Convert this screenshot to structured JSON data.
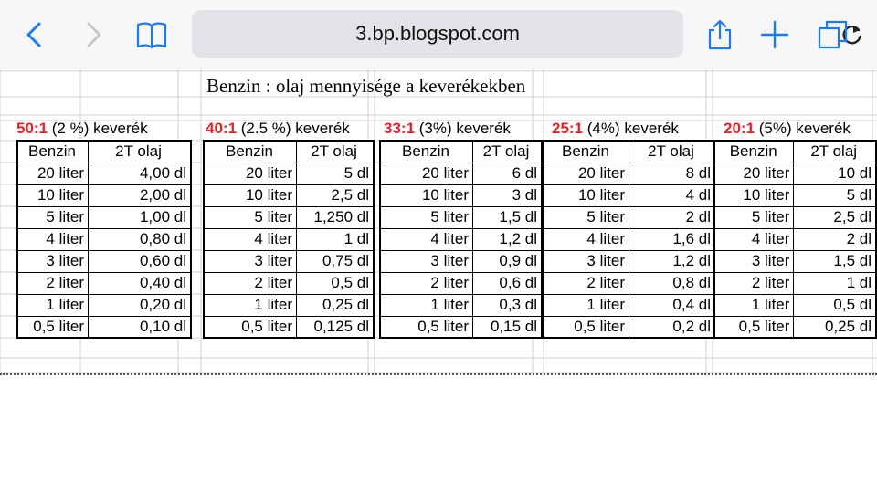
{
  "browser": {
    "url": "3.bp.blogspot.com",
    "icons": [
      "back-icon",
      "forward-icon",
      "bookmarks-icon",
      "reload-icon",
      "share-icon",
      "new-tab-icon",
      "tabs-icon"
    ],
    "accent_color": "#1a7cf4"
  },
  "page": {
    "title": "Benzin : olaj mennyisége a keverékekben",
    "ratio_color": "#e0242a",
    "column_headers": {
      "fuel": "Benzin",
      "oil": "2T olaj"
    },
    "mixtures": [
      {
        "ratio": "50:1",
        "suffix": " (2 %) keverék",
        "rows": [
          [
            "20 liter",
            "4,00 dl"
          ],
          [
            "10 liter",
            "2,00 dl"
          ],
          [
            "5 liter",
            "1,00 dl"
          ],
          [
            "4 liter",
            "0,80 dl"
          ],
          [
            "3 liter",
            "0,60 dl"
          ],
          [
            "2 liter",
            "0,40 dl"
          ],
          [
            "1 liter",
            "0,20 dl"
          ],
          [
            "0,5 liter",
            "0,10 dl"
          ]
        ]
      },
      {
        "ratio": "40:1",
        "suffix": " (2.5 %) keverék",
        "rows": [
          [
            "20 liter",
            "5 dl"
          ],
          [
            "10 liter",
            "2,5 dl"
          ],
          [
            "5 liter",
            "1,250 dl"
          ],
          [
            "4 liter",
            "1 dl"
          ],
          [
            "3 liter",
            "0,75 dl"
          ],
          [
            "2 liter",
            "0,5 dl"
          ],
          [
            "1 liter",
            "0,25 dl"
          ],
          [
            "0,5 liter",
            "0,125 dl"
          ]
        ]
      },
      {
        "ratio": "33:1",
        "suffix": " (3%) keverék",
        "rows": [
          [
            "20 liter",
            "6 dl"
          ],
          [
            "10 liter",
            "3 dl"
          ],
          [
            "5 liter",
            "1,5 dl"
          ],
          [
            "4 liter",
            "1,2 dl"
          ],
          [
            "3 liter",
            "0,9 dl"
          ],
          [
            "2 liter",
            "0,6 dl"
          ],
          [
            "1 liter",
            "0,3 dl"
          ],
          [
            "0,5 liter",
            "0,15 dl"
          ]
        ]
      },
      {
        "ratio": "25:1",
        "suffix": " (4%) keverék",
        "rows": [
          [
            "20 liter",
            "8 dl"
          ],
          [
            "10 liter",
            "4 dl"
          ],
          [
            "5 liter",
            "2 dl"
          ],
          [
            "4 liter",
            "1,6 dl"
          ],
          [
            "3 liter",
            "1,2 dl"
          ],
          [
            "2 liter",
            "0,8 dl"
          ],
          [
            "1 liter",
            "0,4 dl"
          ],
          [
            "0,5 liter",
            "0,2 dl"
          ]
        ]
      },
      {
        "ratio": "20:1",
        "suffix": " (5%) keverék",
        "rows": [
          [
            "20 liter",
            "10 dl"
          ],
          [
            "10 liter",
            "5 dl"
          ],
          [
            "5 liter",
            "2,5 dl"
          ],
          [
            "4 liter",
            "2 dl"
          ],
          [
            "3 liter",
            "1,5 dl"
          ],
          [
            "2 liter",
            "1 dl"
          ],
          [
            "1 liter",
            "0,5 dl"
          ],
          [
            "0,5 liter",
            "0,25 dl"
          ]
        ]
      }
    ]
  }
}
